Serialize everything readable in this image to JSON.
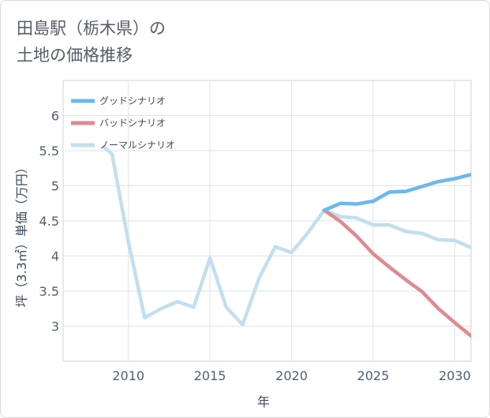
{
  "header": {
    "title_line1": "田島駅（栃木県）の",
    "title_line2": "土地の価格推移"
  },
  "chart_data": {
    "type": "line",
    "title": "田島駅（栃木県）の土地の価格推移",
    "xlabel": "年",
    "ylabel": "坪（3.3㎡）単価（万円）",
    "xlim": [
      2006,
      2031
    ],
    "ylim": [
      2.5,
      6.5
    ],
    "xticks": [
      2010,
      2015,
      2020,
      2025,
      2030
    ],
    "xtick_labels": [
      "2010",
      "2015",
      "2020",
      "2025",
      "2030"
    ],
    "yticks": [
      3,
      3.5,
      4,
      4.5,
      5,
      5.5,
      6
    ],
    "ytick_labels": [
      "3",
      "3.5",
      "4",
      "4.5",
      "5",
      "5.5",
      "6"
    ],
    "grid": true,
    "legend_position": "top-left",
    "series": [
      {
        "name": "グッドシナリオ",
        "color": "#6cb8ee",
        "x": [
          2022,
          2023,
          2024,
          2025,
          2026,
          2027,
          2028,
          2029,
          2030,
          2031
        ],
        "values": [
          4.65,
          4.75,
          4.74,
          4.78,
          4.91,
          4.92,
          4.99,
          5.06,
          5.1,
          5.16
        ]
      },
      {
        "name": "バッドシナリオ",
        "color": "#de8a90",
        "x": [
          2022,
          2023,
          2024,
          2025,
          2026,
          2027,
          2028,
          2029,
          2030,
          2031
        ],
        "values": [
          4.65,
          4.49,
          4.28,
          4.03,
          3.84,
          3.66,
          3.49,
          3.25,
          3.05,
          2.86
        ]
      },
      {
        "name": "ノーマルシナリオ",
        "color": "#c2dfee",
        "x": [
          2008.5,
          2009,
          2010,
          2011,
          2012,
          2013,
          2014,
          2015,
          2016,
          2017,
          2018,
          2019,
          2020,
          2021,
          2022,
          2023,
          2024,
          2025,
          2026,
          2027,
          2028,
          2029,
          2030,
          2031
        ],
        "values": [
          5.55,
          5.45,
          4.2,
          3.12,
          3.25,
          3.35,
          3.27,
          3.97,
          3.27,
          3.02,
          3.68,
          4.13,
          4.05,
          4.33,
          4.65,
          4.56,
          4.54,
          4.44,
          4.44,
          4.35,
          4.32,
          4.23,
          4.22,
          4.12
        ]
      }
    ]
  }
}
